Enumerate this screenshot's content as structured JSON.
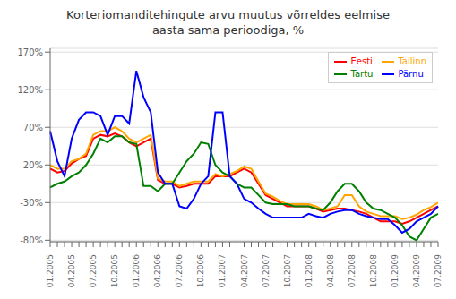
{
  "chart_data": {
    "type": "line",
    "title": "Korteriomanditehingute arvu muutus võrreldes eelmise\naasta sama perioodiga, %",
    "categories": [
      "01.2005",
      null,
      null,
      "04.2005",
      null,
      null,
      "07.2005",
      null,
      null,
      "10.2005",
      null,
      null,
      "01.2006",
      null,
      null,
      "04.2006",
      null,
      null,
      "07.2006",
      null,
      null,
      "10.2006",
      null,
      null,
      "01.2007",
      null,
      null,
      "04.2007",
      null,
      null,
      "07.2007",
      null,
      null,
      "10.2007",
      null,
      null,
      "01.2008",
      null,
      null,
      "04.2008",
      null,
      null,
      "07.2008",
      null,
      null,
      "10.2008",
      null,
      null,
      "01.2009",
      null,
      null,
      "04.2009",
      null,
      null,
      "07.2009"
    ],
    "series": [
      {
        "name": "Eesti",
        "color": "#FF0000",
        "values": [
          0.15,
          0.1,
          0.12,
          0.22,
          0.28,
          0.32,
          0.55,
          0.6,
          0.58,
          0.62,
          0.58,
          0.5,
          0.45,
          0.5,
          0.55,
          0.0,
          -0.05,
          -0.05,
          -0.1,
          -0.08,
          -0.05,
          -0.05,
          -0.05,
          0.05,
          0.05,
          0.05,
          0.1,
          0.15,
          0.1,
          -0.05,
          -0.2,
          -0.25,
          -0.3,
          -0.35,
          -0.35,
          -0.35,
          -0.35,
          -0.38,
          -0.42,
          -0.4,
          -0.38,
          -0.38,
          -0.4,
          -0.42,
          -0.45,
          -0.5,
          -0.55,
          -0.55,
          -0.55,
          -0.58,
          -0.55,
          -0.5,
          -0.45,
          -0.4,
          -0.35
        ]
      },
      {
        "name": "Tallinn",
        "color": "#FFA500",
        "values": [
          0.2,
          0.15,
          0.15,
          0.25,
          0.28,
          0.35,
          0.6,
          0.65,
          0.65,
          0.7,
          0.65,
          0.55,
          0.5,
          0.55,
          0.6,
          0.02,
          -0.02,
          -0.02,
          -0.08,
          -0.05,
          -0.02,
          -0.02,
          -0.02,
          0.08,
          0.05,
          0.08,
          0.12,
          0.18,
          0.15,
          -0.02,
          -0.18,
          -0.22,
          -0.28,
          -0.32,
          -0.32,
          -0.32,
          -0.32,
          -0.35,
          -0.4,
          -0.38,
          -0.35,
          -0.2,
          -0.2,
          -0.35,
          -0.42,
          -0.45,
          -0.48,
          -0.48,
          -0.48,
          -0.52,
          -0.5,
          -0.46,
          -0.4,
          -0.36,
          -0.3
        ]
      },
      {
        "name": "Tartu",
        "color": "#008000",
        "values": [
          -0.1,
          -0.05,
          -0.02,
          0.05,
          0.1,
          0.2,
          0.35,
          0.55,
          0.5,
          0.58,
          0.58,
          0.5,
          0.48,
          -0.08,
          -0.08,
          -0.15,
          -0.05,
          -0.05,
          0.1,
          0.25,
          0.35,
          0.5,
          0.48,
          0.2,
          0.1,
          0.05,
          -0.05,
          -0.1,
          -0.1,
          -0.2,
          -0.3,
          -0.32,
          -0.32,
          -0.32,
          -0.35,
          -0.35,
          -0.35,
          -0.38,
          -0.4,
          -0.3,
          -0.15,
          -0.05,
          -0.05,
          -0.15,
          -0.3,
          -0.38,
          -0.4,
          -0.45,
          -0.5,
          -0.6,
          -0.75,
          -0.8,
          -0.65,
          -0.5,
          -0.45
        ]
      },
      {
        "name": "Pärnu",
        "color": "#0000FF",
        "values": [
          0.65,
          0.25,
          0.05,
          0.55,
          0.8,
          0.9,
          0.9,
          0.85,
          0.6,
          0.85,
          0.85,
          0.75,
          1.45,
          1.1,
          0.9,
          0.1,
          -0.05,
          -0.05,
          -0.35,
          -0.38,
          -0.25,
          -0.05,
          0.05,
          0.9,
          0.9,
          0.05,
          -0.05,
          -0.25,
          -0.3,
          -0.38,
          -0.45,
          -0.5,
          -0.5,
          -0.5,
          -0.5,
          -0.5,
          -0.45,
          -0.48,
          -0.5,
          -0.45,
          -0.42,
          -0.4,
          -0.4,
          -0.45,
          -0.48,
          -0.5,
          -0.52,
          -0.52,
          -0.6,
          -0.7,
          -0.65,
          -0.55,
          -0.5,
          -0.45,
          -0.35
        ]
      }
    ],
    "ylim": [
      -0.82,
      1.75
    ],
    "yticks": [
      {
        "value": -0.8,
        "label": "-80%"
      },
      {
        "value": -0.3,
        "label": "-30%"
      },
      {
        "value": 0.2,
        "label": "20%"
      },
      {
        "value": 0.7,
        "label": "70%"
      },
      {
        "value": 1.2,
        "label": "120%"
      },
      {
        "value": 1.7,
        "label": "170%"
      }
    ],
    "grid": true,
    "legend": "upper right"
  }
}
